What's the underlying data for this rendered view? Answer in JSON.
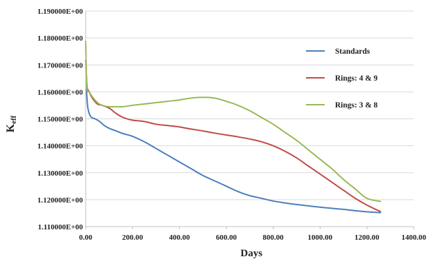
{
  "chart_data": {
    "type": "line",
    "title": "",
    "xlabel": "Days",
    "ylabel": "K",
    "ylabel_sub": "eff",
    "xlim": [
      0,
      1400
    ],
    "ylim": [
      1.11,
      1.19
    ],
    "x_ticks": [
      "0.00",
      "200.00",
      "400.00",
      "600.00",
      "800.00",
      "1000.00",
      "1200.00",
      "1400.00"
    ],
    "x_tick_values": [
      0,
      200,
      400,
      600,
      800,
      1000,
      1200,
      1400
    ],
    "y_ticks": [
      "1.110000E+00",
      "1.120000E+00",
      "1.130000E+00",
      "1.140000E+00",
      "1.150000E+00",
      "1.160000E+00",
      "1.170000E+00",
      "1.180000E+00",
      "1.190000E+00"
    ],
    "y_tick_values": [
      1.11,
      1.12,
      1.13,
      1.14,
      1.15,
      1.16,
      1.17,
      1.18,
      1.19
    ],
    "grid": "horizontal",
    "legend_position": "right",
    "series": [
      {
        "name": "Standards",
        "color": "#4a7ebb",
        "x": [
          0,
          3,
          8,
          15,
          25,
          40,
          60,
          80,
          100,
          130,
          160,
          200,
          250,
          300,
          350,
          400,
          450,
          500,
          550,
          600,
          650,
          700,
          750,
          800,
          850,
          900,
          950,
          1000,
          1050,
          1100,
          1150,
          1200,
          1260
        ],
        "y": [
          1.172,
          1.162,
          1.155,
          1.152,
          1.1505,
          1.15,
          1.149,
          1.1475,
          1.1465,
          1.1455,
          1.1445,
          1.1435,
          1.1415,
          1.139,
          1.1365,
          1.134,
          1.1315,
          1.129,
          1.127,
          1.125,
          1.123,
          1.1215,
          1.1205,
          1.1195,
          1.1188,
          1.1182,
          1.1177,
          1.1172,
          1.1168,
          1.1164,
          1.1159,
          1.1155,
          1.1152
        ]
      },
      {
        "name": "Rings:  4 & 9",
        "color": "#be4b48",
        "x": [
          0,
          5,
          15,
          30,
          50,
          70,
          100,
          130,
          160,
          200,
          250,
          300,
          350,
          400,
          450,
          500,
          550,
          600,
          650,
          700,
          750,
          800,
          850,
          900,
          950,
          1000,
          1050,
          1100,
          1150,
          1200,
          1260
        ],
        "y": [
          1.178,
          1.163,
          1.16,
          1.1575,
          1.1555,
          1.155,
          1.154,
          1.152,
          1.1505,
          1.1495,
          1.149,
          1.148,
          1.1475,
          1.147,
          1.1462,
          1.1455,
          1.1447,
          1.144,
          1.1433,
          1.1425,
          1.1415,
          1.14,
          1.138,
          1.1355,
          1.1325,
          1.1295,
          1.1265,
          1.1235,
          1.1205,
          1.118,
          1.1155
        ]
      },
      {
        "name": "Rings: 3 & 8",
        "color": "#98b954",
        "x": [
          0,
          5,
          15,
          30,
          50,
          70,
          100,
          130,
          160,
          200,
          250,
          300,
          350,
          400,
          450,
          500,
          550,
          600,
          650,
          700,
          750,
          800,
          850,
          900,
          950,
          1000,
          1050,
          1100,
          1150,
          1200,
          1260
        ],
        "y": [
          1.179,
          1.162,
          1.16,
          1.158,
          1.156,
          1.155,
          1.1545,
          1.1545,
          1.1545,
          1.155,
          1.1555,
          1.156,
          1.1565,
          1.157,
          1.1577,
          1.158,
          1.1577,
          1.1565,
          1.155,
          1.153,
          1.1505,
          1.148,
          1.145,
          1.142,
          1.1385,
          1.135,
          1.1315,
          1.1275,
          1.124,
          1.1205,
          1.1193
        ]
      }
    ]
  }
}
